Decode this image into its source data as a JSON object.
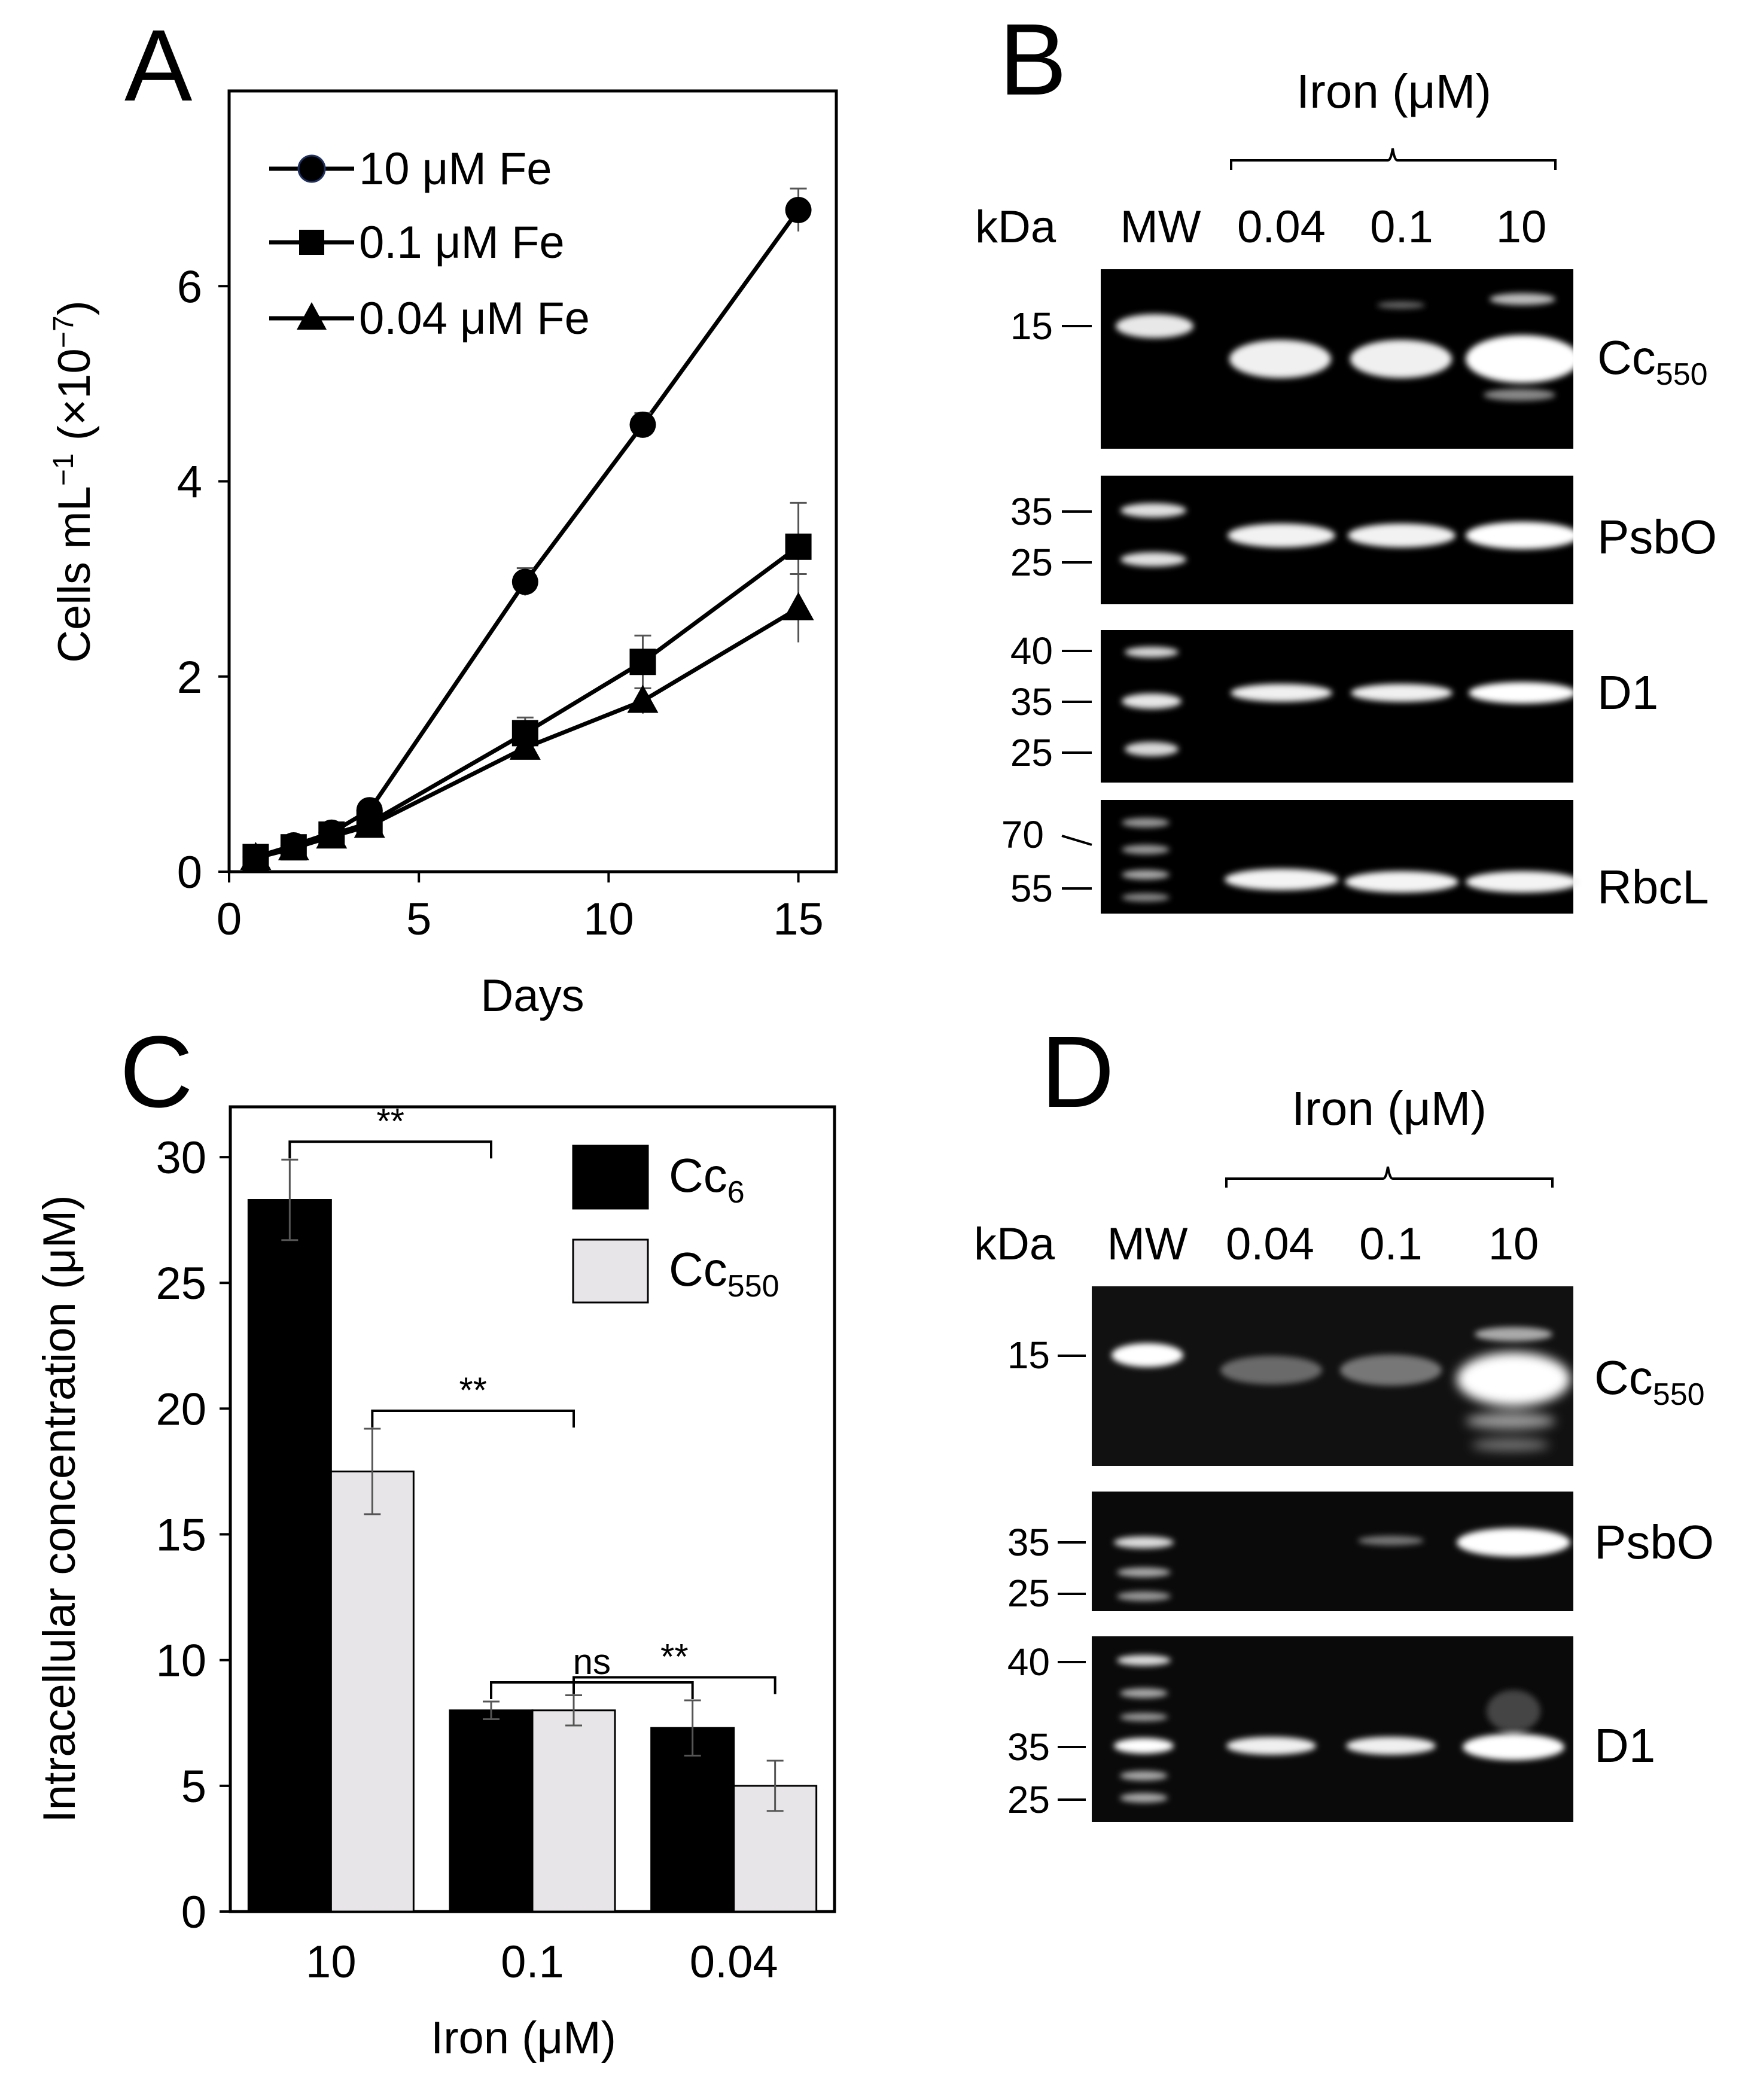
{
  "panelA": {
    "letter": "A",
    "chart_data": {
      "type": "line",
      "xlabel": "Days",
      "ylabel_main": "Cells mL",
      "ylabel_sup": "−1",
      "ylabel_mult": "(×10",
      "ylabel_exp": "−7",
      "ylabel_close": ")",
      "xlim": [
        0,
        16
      ],
      "ylim": [
        0,
        8
      ],
      "xticks": [
        0,
        5,
        10,
        15
      ],
      "yticks": [
        0,
        2,
        4,
        6
      ],
      "series": [
        {
          "name": "10 μM Fe",
          "marker": "circle",
          "x": [
            0.7,
            1.7,
            2.7,
            3.7,
            7.8,
            10.9,
            15
          ],
          "y": [
            0.15,
            0.27,
            0.4,
            0.63,
            2.97,
            4.58,
            6.78
          ],
          "err": [
            0.04,
            0.04,
            0.05,
            0.07,
            0.14,
            0.12,
            0.22
          ]
        },
        {
          "name": "0.1 μM Fe",
          "marker": "square",
          "x": [
            0.7,
            1.7,
            2.7,
            3.7,
            7.8,
            10.9,
            15
          ],
          "y": [
            0.15,
            0.25,
            0.38,
            0.5,
            1.42,
            2.15,
            3.33
          ],
          "err": [
            0.04,
            0.04,
            0.05,
            0.06,
            0.16,
            0.27,
            0.45
          ]
        },
        {
          "name": "0.04 μM Fe",
          "marker": "triangle",
          "x": [
            0.7,
            1.7,
            2.7,
            3.7,
            7.8,
            10.9,
            15
          ],
          "y": [
            0.14,
            0.24,
            0.36,
            0.47,
            1.27,
            1.75,
            2.7
          ],
          "err": [
            0.04,
            0.04,
            0.05,
            0.06,
            0.1,
            0.13,
            0.35
          ]
        }
      ]
    }
  },
  "panelB": {
    "letter": "B",
    "header": "Iron (μM)",
    "kda": "kDa",
    "lanes": [
      "MW",
      "0.04",
      "0.1",
      "10"
    ],
    "blots": [
      {
        "label": "Cc",
        "sub": "550",
        "markers": [
          "15"
        ]
      },
      {
        "label": "PsbO",
        "sub": "",
        "markers": [
          "35",
          "25"
        ]
      },
      {
        "label": "D1",
        "sub": "",
        "markers": [
          "40",
          "35",
          "25"
        ]
      },
      {
        "label": "RbcL",
        "sub": "",
        "markers": [
          "70",
          "55"
        ]
      }
    ]
  },
  "panelC": {
    "letter": "C",
    "chart_data": {
      "type": "bar",
      "title": "",
      "xlabel": "Iron (μM)",
      "ylabel": "Intracellular concentration (μM)",
      "categories": [
        "10",
        "0.1",
        "0.04"
      ],
      "ylim": [
        0,
        32
      ],
      "yticks": [
        0,
        5,
        10,
        15,
        20,
        25,
        30
      ],
      "series": [
        {
          "name": "Cc",
          "sub": "6",
          "color": "#000000",
          "values": [
            28.3,
            8.0,
            7.3
          ],
          "err": [
            1.6,
            0.35,
            1.1
          ]
        },
        {
          "name": "Cc",
          "sub": "550",
          "color": "#e8e5e8",
          "values": [
            17.5,
            8.0,
            5.0
          ],
          "err": [
            1.7,
            0.6,
            1.0
          ]
        }
      ],
      "annotations": [
        {
          "text": "**",
          "from": "Cc6 @ 10",
          "to": "Cc6 @ 0.1"
        },
        {
          "text": "**",
          "from": "Cc550 @ 10",
          "to": "Cc550 @ 0.1"
        },
        {
          "text": "ns",
          "from": "Cc6 @ 0.1",
          "to": "Cc6 @ 0.04"
        },
        {
          "text": "**",
          "from": "Cc550 @ 0.1",
          "to": "Cc550 @ 0.04"
        }
      ]
    }
  },
  "panelD": {
    "letter": "D",
    "header": "Iron (μM)",
    "kda": "kDa",
    "lanes": [
      "MW",
      "0.04",
      "0.1",
      "10"
    ],
    "blots": [
      {
        "label": "Cc",
        "sub": "550",
        "markers": [
          "15"
        ]
      },
      {
        "label": "PsbO",
        "sub": "",
        "markers": [
          "35",
          "25"
        ]
      },
      {
        "label": "D1",
        "sub": "",
        "markers": [
          "40",
          "35",
          "25"
        ]
      }
    ]
  }
}
